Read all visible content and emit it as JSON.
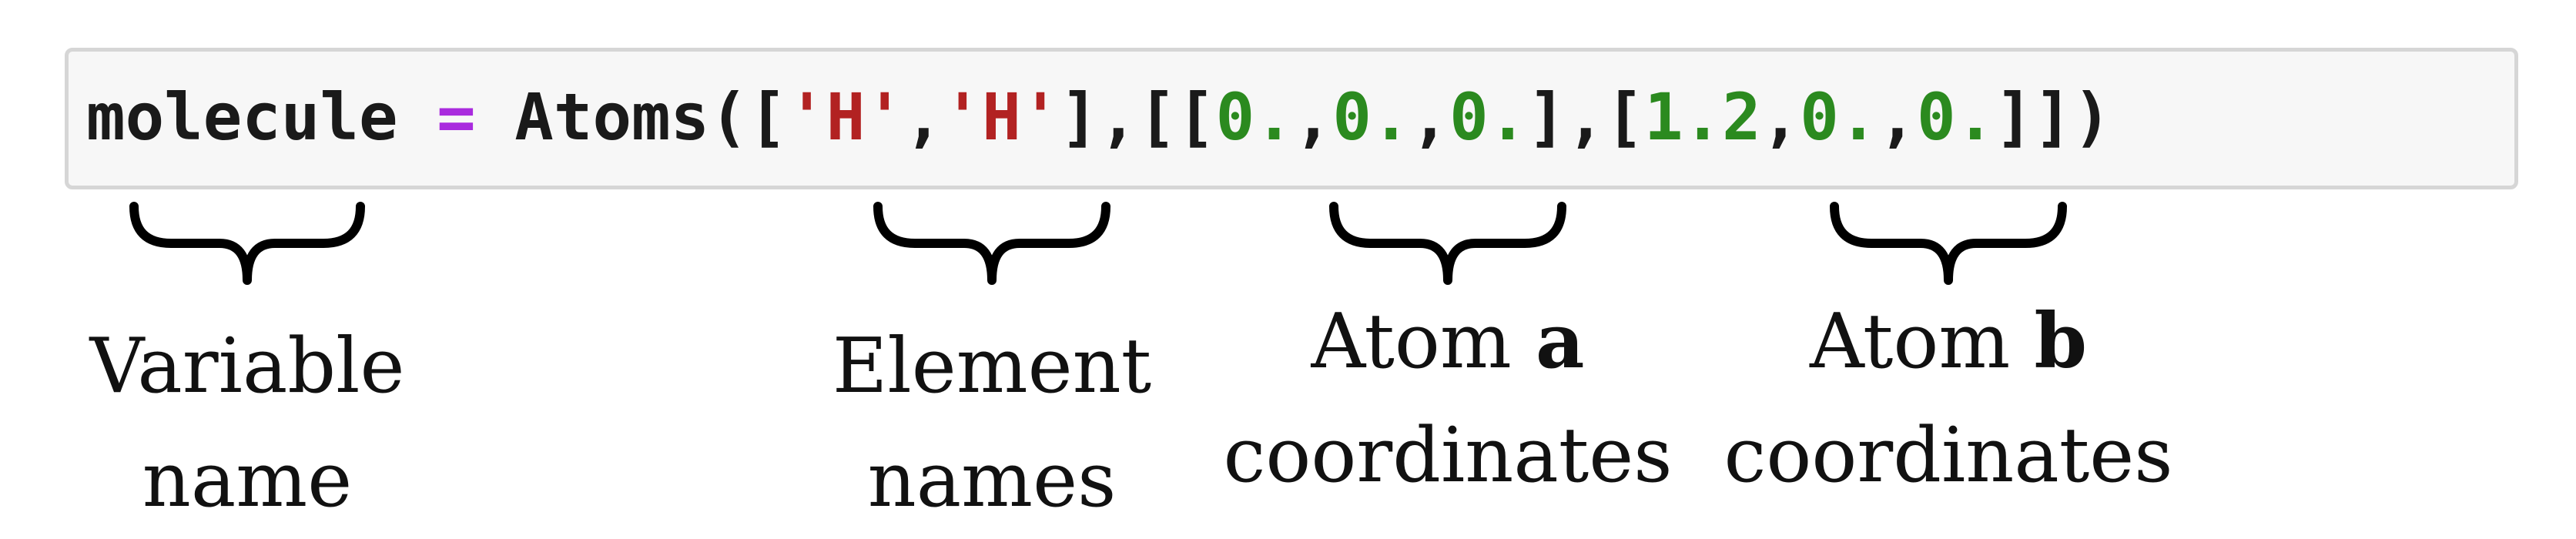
{
  "code": {
    "variable": "molecule",
    "assign_op": " = ",
    "func": "Atoms",
    "open_call": "([",
    "str1": "'H'",
    "comma1": ",",
    "str2": "'H'",
    "close_elems": "],[[",
    "a_x": "0.",
    "c2": ",",
    "a_y": "0.",
    "c3": ",",
    "a_z": "0.",
    "mid": "],[",
    "b_x": "1.2",
    "c4": ",",
    "b_y": "0.",
    "c5": ",",
    "b_z": "0.",
    "close_call": "]])"
  },
  "colors": {
    "operator": "#a92bde",
    "string": "#b22222",
    "number": "#2b8a1f",
    "code_background": "#f7f7f7",
    "code_border": "#d6d6d6"
  },
  "annotations": {
    "variable": {
      "line1": "Variable",
      "line2": "name"
    },
    "elements": {
      "line1": "Element",
      "line2": "names"
    },
    "atom_a": {
      "line1_prefix": "Atom ",
      "line1_bold": "a",
      "line2": "coordinates"
    },
    "atom_b": {
      "line1_prefix": "Atom ",
      "line1_bold": "b",
      "line2": "coordinates"
    }
  },
  "brace_icon": "curly-brace-under-icon"
}
